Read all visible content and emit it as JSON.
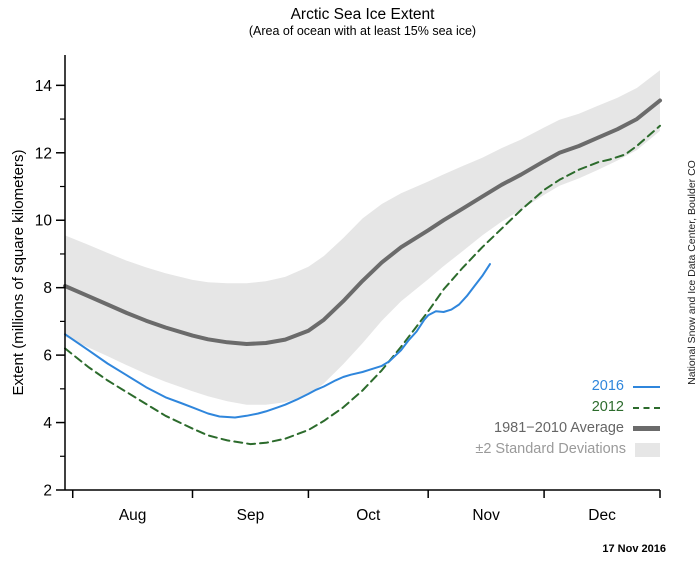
{
  "header": {
    "title": "Arctic Sea Ice Extent",
    "subtitle": "(Area of ocean with at least 15% sea ice)"
  },
  "axes": {
    "y_label": "Extent (millions of square kilometers)"
  },
  "credit": "National Snow and Ice Data Center, Boulder CO",
  "date_label": "17 Nov 2016",
  "colors": {
    "line_2016": "#2f86dc",
    "line_2012": "#2c6b2c",
    "average_line": "#6b6b6b",
    "std_dev_band": "#e6e6e6",
    "axis": "#000000"
  },
  "legend": {
    "items": [
      {
        "label": "2016",
        "color": "#2f86dc",
        "swatch": "line"
      },
      {
        "label": "2012",
        "color": "#2c6b2c",
        "swatch": "dashed-line"
      },
      {
        "label": "1981−2010 Average",
        "color": "#666666",
        "swatch": "thick-line"
      },
      {
        "label": "±2 Standard Deviations",
        "color": "#9a9a9a",
        "swatch": "box"
      }
    ]
  },
  "chart_data": {
    "type": "line",
    "title": "Arctic Sea Ice Extent",
    "subtitle": "(Area of ocean with at least 15% sea ice)",
    "ylabel": "Extent (millions of square kilometers)",
    "x_unit": "days since 30 Jul 2016 (axis spans late Jul through 31 Dec)",
    "xlim": [
      0,
      154
    ],
    "ylim": [
      2,
      14.9
    ],
    "yticks_major": [
      2,
      4,
      6,
      8,
      10,
      12,
      14
    ],
    "yticks_minor": [
      3,
      5,
      7,
      9,
      11,
      13
    ],
    "month_ticks": [
      2,
      33,
      63,
      94,
      124,
      154
    ],
    "month_labels": [
      {
        "label": "Aug",
        "day": 17.5
      },
      {
        "label": "Sep",
        "day": 48
      },
      {
        "label": "Oct",
        "day": 78.5
      },
      {
        "label": "Nov",
        "day": 109
      },
      {
        "label": "Dec",
        "day": 139
      }
    ],
    "band": {
      "name": "±2 Standard Deviations",
      "fill": "#e6e6e6",
      "days": [
        0,
        6,
        11,
        16,
        21,
        26,
        33,
        37,
        42,
        47,
        52,
        57,
        63,
        67,
        72,
        77,
        82,
        87,
        94,
        98,
        103,
        108,
        113,
        118,
        124,
        128,
        133,
        138,
        143,
        148,
        154
      ],
      "upper": [
        9.55,
        9.27,
        9.03,
        8.8,
        8.6,
        8.43,
        8.23,
        8.16,
        8.13,
        8.13,
        8.19,
        8.32,
        8.62,
        8.94,
        9.47,
        10.05,
        10.48,
        10.8,
        11.15,
        11.36,
        11.61,
        11.85,
        12.14,
        12.39,
        12.75,
        12.98,
        13.16,
        13.4,
        13.63,
        13.92,
        14.45
      ],
      "lower": [
        6.55,
        6.23,
        5.97,
        5.7,
        5.44,
        5.21,
        4.93,
        4.78,
        4.63,
        4.53,
        4.53,
        4.6,
        4.82,
        5.16,
        5.73,
        6.35,
        7.02,
        7.6,
        8.25,
        8.64,
        9.09,
        9.55,
        9.96,
        10.31,
        10.75,
        11.02,
        11.24,
        11.5,
        11.77,
        12.08,
        12.65
      ]
    },
    "series": [
      {
        "name": "1981-2010 Average",
        "color": "#6b6b6b",
        "width": 4,
        "dash": null,
        "points": [
          [
            0,
            8.05
          ],
          [
            6,
            7.75
          ],
          [
            11,
            7.5
          ],
          [
            16,
            7.25
          ],
          [
            21,
            7.02
          ],
          [
            26,
            6.82
          ],
          [
            33,
            6.58
          ],
          [
            37,
            6.47
          ],
          [
            42,
            6.38
          ],
          [
            47,
            6.33
          ],
          [
            52,
            6.36
          ],
          [
            57,
            6.46
          ],
          [
            63,
            6.72
          ],
          [
            67,
            7.05
          ],
          [
            72,
            7.6
          ],
          [
            77,
            8.2
          ],
          [
            82,
            8.75
          ],
          [
            87,
            9.2
          ],
          [
            94,
            9.7
          ],
          [
            98,
            10.0
          ],
          [
            103,
            10.35
          ],
          [
            108,
            10.7
          ],
          [
            113,
            11.05
          ],
          [
            118,
            11.35
          ],
          [
            124,
            11.75
          ],
          [
            128,
            12.0
          ],
          [
            133,
            12.2
          ],
          [
            138,
            12.45
          ],
          [
            143,
            12.7
          ],
          [
            148,
            13.0
          ],
          [
            154,
            13.55
          ]
        ]
      },
      {
        "name": "2012",
        "color": "#2c6b2c",
        "width": 2,
        "dash": "8,5",
        "points": [
          [
            0,
            6.2
          ],
          [
            6,
            5.65
          ],
          [
            11,
            5.25
          ],
          [
            16,
            4.9
          ],
          [
            21,
            4.55
          ],
          [
            26,
            4.2
          ],
          [
            33,
            3.82
          ],
          [
            37,
            3.62
          ],
          [
            42,
            3.47
          ],
          [
            48,
            3.36
          ],
          [
            52,
            3.4
          ],
          [
            57,
            3.52
          ],
          [
            63,
            3.78
          ],
          [
            67,
            4.05
          ],
          [
            72,
            4.45
          ],
          [
            77,
            4.95
          ],
          [
            82,
            5.55
          ],
          [
            87,
            6.25
          ],
          [
            91,
            6.85
          ],
          [
            94,
            7.3
          ],
          [
            98,
            7.95
          ],
          [
            103,
            8.6
          ],
          [
            108,
            9.2
          ],
          [
            113,
            9.75
          ],
          [
            118,
            10.3
          ],
          [
            124,
            10.9
          ],
          [
            128,
            11.2
          ],
          [
            133,
            11.5
          ],
          [
            138,
            11.72
          ],
          [
            141,
            11.8
          ],
          [
            145,
            11.95
          ],
          [
            148,
            12.2
          ],
          [
            151,
            12.5
          ],
          [
            154,
            12.8
          ]
        ]
      },
      {
        "name": "2016",
        "color": "#2f86dc",
        "width": 2,
        "dash": null,
        "points": [
          [
            0,
            6.62
          ],
          [
            6,
            6.15
          ],
          [
            11,
            5.75
          ],
          [
            16,
            5.4
          ],
          [
            21,
            5.05
          ],
          [
            26,
            4.75
          ],
          [
            30,
            4.58
          ],
          [
            33,
            4.45
          ],
          [
            37,
            4.27
          ],
          [
            40,
            4.18
          ],
          [
            44,
            4.15
          ],
          [
            47,
            4.2
          ],
          [
            50,
            4.27
          ],
          [
            52,
            4.33
          ],
          [
            55,
            4.45
          ],
          [
            57,
            4.53
          ],
          [
            60,
            4.68
          ],
          [
            63,
            4.85
          ],
          [
            65,
            4.97
          ],
          [
            67,
            5.07
          ],
          [
            70,
            5.25
          ],
          [
            72,
            5.35
          ],
          [
            74,
            5.42
          ],
          [
            77,
            5.5
          ],
          [
            79,
            5.57
          ],
          [
            82,
            5.68
          ],
          [
            84,
            5.82
          ],
          [
            87,
            6.15
          ],
          [
            89,
            6.45
          ],
          [
            91,
            6.7
          ],
          [
            93,
            7.05
          ],
          [
            94,
            7.18
          ],
          [
            96,
            7.3
          ],
          [
            98,
            7.28
          ],
          [
            100,
            7.35
          ],
          [
            102,
            7.5
          ],
          [
            104,
            7.75
          ],
          [
            106,
            8.05
          ],
          [
            108,
            8.35
          ],
          [
            110,
            8.7
          ]
        ]
      }
    ],
    "legend_position": "inside lower right",
    "grid": false
  }
}
